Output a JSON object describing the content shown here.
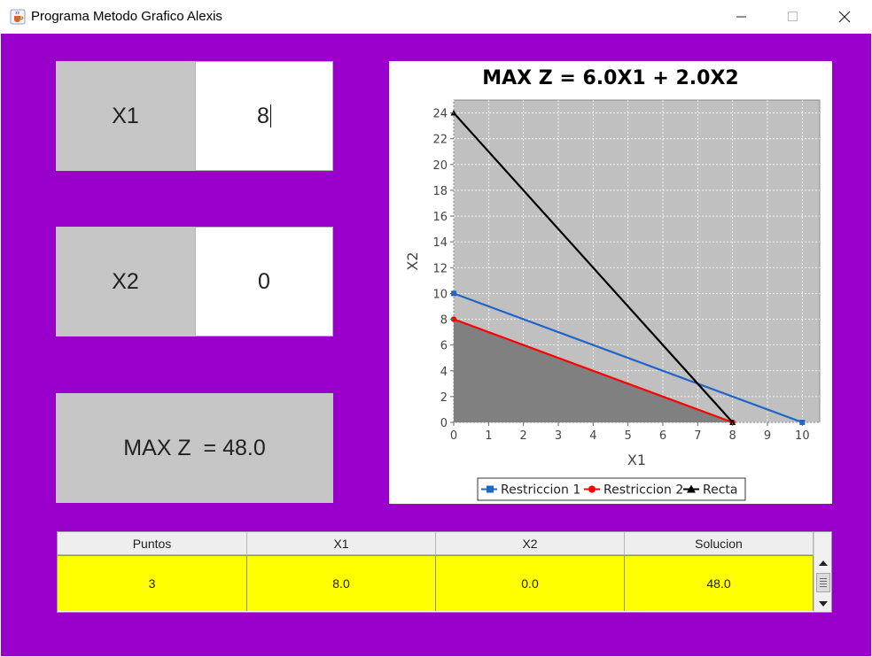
{
  "window": {
    "title": "Programa Metodo Grafico Alexis",
    "icon": "java-cup-icon",
    "controls": [
      "minimize-icon",
      "maximize-icon",
      "close-icon"
    ]
  },
  "colors": {
    "background": "#9900cc",
    "label_panel": "#c6c6c6",
    "table_row": "#ffff00",
    "plot_bg": "#c0c0c0",
    "feasible_region": "#808080",
    "series_1": "#1f66c8",
    "series_2": "#ff0000",
    "series_3": "#000000"
  },
  "inputs": {
    "x1_label": "X1",
    "x1_value": "8",
    "x2_label": "X2",
    "x2_value": "0"
  },
  "result": {
    "text": "MAX Z  = 48.0"
  },
  "table": {
    "headers": [
      "Puntos",
      "X1",
      "X2",
      "Solucion"
    ],
    "rows": [
      [
        "3",
        "8.0",
        "0.0",
        "48.0"
      ]
    ]
  },
  "chart_data": {
    "type": "line",
    "title": "MAX Z = 6.0X1 + 2.0X2",
    "xlabel": "X1",
    "ylabel": "X2",
    "xlim": [
      0,
      10.5
    ],
    "ylim": [
      0,
      25
    ],
    "xticks": [
      "0",
      "1",
      "2",
      "3",
      "4",
      "5",
      "6",
      "7",
      "8",
      "9",
      "10"
    ],
    "yticks": [
      "0",
      "2",
      "4",
      "6",
      "8",
      "10",
      "12",
      "14",
      "16",
      "18",
      "20",
      "22",
      "24"
    ],
    "grid": true,
    "legend_position": "bottom",
    "feasible_region": [
      [
        0,
        0
      ],
      [
        0,
        8
      ],
      [
        8,
        0
      ]
    ],
    "series": [
      {
        "name": "Restriccion 1",
        "marker": "square",
        "x": [
          0,
          10
        ],
        "y": [
          10,
          0
        ]
      },
      {
        "name": "Restriccion 2",
        "marker": "circle",
        "x": [
          0,
          8
        ],
        "y": [
          8,
          0
        ]
      },
      {
        "name": "Recta",
        "marker": "triangle",
        "x": [
          0,
          8
        ],
        "y": [
          24,
          0
        ]
      }
    ]
  }
}
